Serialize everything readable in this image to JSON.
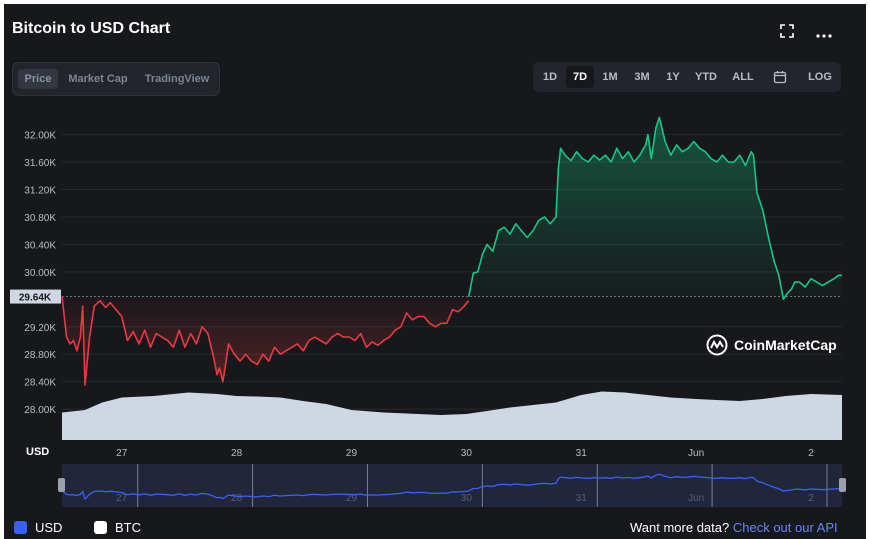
{
  "header": {
    "title": "Bitcoin to USD Chart",
    "expand_icon": "expand-icon",
    "more_icon": "more-icon"
  },
  "view_tabs": [
    {
      "label": "Price",
      "active": true
    },
    {
      "label": "Market Cap",
      "active": false
    },
    {
      "label": "TradingView",
      "active": false
    }
  ],
  "ranges": [
    {
      "label": "1D",
      "active": false
    },
    {
      "label": "7D",
      "active": true
    },
    {
      "label": "1M",
      "active": false
    },
    {
      "label": "3M",
      "active": false
    },
    {
      "label": "1Y",
      "active": false
    },
    {
      "label": "YTD",
      "active": false
    },
    {
      "label": "ALL",
      "active": false
    }
  ],
  "calendar_icon": "calendar-icon",
  "log_label": "LOG",
  "watermark": "CoinMarketCap",
  "currency_axis_label": "USD",
  "footer": {
    "usd_label": "USD",
    "btc_label": "BTC",
    "more_text": "Want more data?",
    "api_link": "Check out our API"
  },
  "colors": {
    "background": "#17181b",
    "up": "#16c784",
    "down": "#ea3943",
    "volume": "#cfd6e4",
    "navigator_line": "#3861fb",
    "link": "#6188ff"
  },
  "chart_data": {
    "type": "line",
    "title": "Bitcoin to USD Chart",
    "y_unit": "USD",
    "ylim": [
      27550,
      32300
    ],
    "y_ticks": [
      "28.00K",
      "28.40K",
      "28.80K",
      "29.20K",
      "29.64K",
      "30.00K",
      "30.40K",
      "30.80K",
      "31.20K",
      "31.60K",
      "32.00K"
    ],
    "y_tick_values": [
      28000,
      28400,
      28800,
      29200,
      29640,
      30000,
      30400,
      30800,
      31200,
      31600,
      32000
    ],
    "x_ticks": [
      "27",
      "28",
      "29",
      "30",
      "31",
      "Jun",
      "2"
    ],
    "x_tick_values": [
      26.72,
      27.72,
      28.72,
      29.72,
      30.72,
      31.72,
      32.72
    ],
    "baseline_price": 29640,
    "baseline_label": "29.64K",
    "xlim": [
      26.2,
      32.99
    ],
    "series": [
      {
        "x": [
          26.2,
          26.24,
          26.27,
          26.3,
          26.33,
          26.36,
          26.38,
          26.4,
          26.44,
          26.48,
          26.53,
          26.58,
          26.62,
          26.67,
          26.72,
          26.77,
          26.82,
          26.87,
          26.92,
          26.97,
          27.02,
          27.07,
          27.12,
          27.17,
          27.22,
          27.27,
          27.32,
          27.37,
          27.42,
          27.47,
          27.52,
          27.55,
          27.57,
          27.6,
          27.62,
          27.65,
          27.7,
          27.75,
          27.8,
          27.85,
          27.9,
          27.95,
          28.0,
          28.05,
          28.1,
          28.15,
          28.2,
          28.25,
          28.3,
          28.35,
          28.4,
          28.45,
          28.5,
          28.55,
          28.6,
          28.65,
          28.7,
          28.75,
          28.8,
          28.85,
          28.9,
          28.95,
          29.0,
          29.05,
          29.1,
          29.15,
          29.2,
          29.25,
          29.3,
          29.35,
          29.4,
          29.45,
          29.5,
          29.55,
          29.6,
          29.65,
          29.7,
          29.74
        ],
        "y": [
          29640,
          29050,
          28950,
          29000,
          28850,
          29050,
          29500,
          28350,
          29050,
          29500,
          29580,
          29480,
          29550,
          29450,
          29350,
          29000,
          29130,
          28950,
          29150,
          28900,
          29100,
          29050,
          29000,
          28900,
          29150,
          28900,
          29100,
          28950,
          29200,
          29100,
          28750,
          28500,
          28600,
          28400,
          28600,
          28950,
          28800,
          28700,
          28800,
          28700,
          28650,
          28800,
          28700,
          28900,
          28800,
          28850,
          28900,
          28950,
          28850,
          29000,
          29050,
          29000,
          28950,
          29050,
          29100,
          29050,
          29050,
          29000,
          29100,
          28900,
          28980,
          28930,
          29000,
          29050,
          29150,
          29200,
          29400,
          29300,
          29350,
          29350,
          29250,
          29200,
          29250,
          29250,
          29450,
          29420,
          29500,
          29580
        ]
      },
      {
        "x": [
          29.74,
          29.78,
          29.82,
          29.86,
          29.9,
          29.95,
          30.0,
          30.05,
          30.1,
          30.15,
          30.2,
          30.25,
          30.3,
          30.35,
          30.4,
          30.45,
          30.5,
          30.52,
          30.54,
          30.58,
          30.63,
          30.68,
          30.73,
          30.78,
          30.83,
          30.88,
          30.93,
          30.98,
          31.03,
          31.08,
          31.13,
          31.18,
          31.23,
          31.28,
          31.3,
          31.33,
          31.37,
          31.4,
          31.45,
          31.5,
          31.55,
          31.6,
          31.65,
          31.7,
          31.75,
          31.8,
          31.85,
          31.9,
          31.95,
          32.0,
          32.05,
          32.1,
          32.15,
          32.2,
          32.22,
          32.25,
          32.3,
          32.35,
          32.4,
          32.44,
          32.48,
          32.52,
          32.55,
          32.58,
          32.62,
          32.67,
          32.72,
          32.77,
          32.82,
          32.87,
          32.92,
          32.96,
          32.99
        ],
        "y": [
          29640,
          29980,
          30000,
          30250,
          30400,
          30300,
          30600,
          30650,
          30550,
          30700,
          30600,
          30500,
          30600,
          30750,
          30800,
          30700,
          30800,
          31500,
          31800,
          31700,
          31620,
          31750,
          31650,
          31600,
          31700,
          31630,
          31700,
          31600,
          31800,
          31650,
          31750,
          31600,
          31700,
          31850,
          32000,
          31650,
          32100,
          32250,
          31900,
          31700,
          31850,
          31750,
          31800,
          31900,
          31800,
          31750,
          31650,
          31600,
          31700,
          31600,
          31600,
          31700,
          31550,
          31750,
          31700,
          31150,
          30900,
          30500,
          30150,
          29950,
          29600,
          29700,
          29750,
          29850,
          29850,
          29780,
          29900,
          29850,
          29800,
          29850,
          29900,
          29950,
          29950
        ]
      }
    ],
    "volume": {
      "x": [
        26.2,
        26.4,
        26.55,
        26.72,
        27.0,
        27.3,
        27.55,
        27.72,
        27.9,
        28.1,
        28.3,
        28.5,
        28.72,
        29.0,
        29.3,
        29.5,
        29.72,
        29.9,
        30.1,
        30.3,
        30.5,
        30.72,
        30.9,
        31.1,
        31.3,
        31.5,
        31.72,
        31.9,
        32.1,
        32.3,
        32.5,
        32.72,
        32.99
      ],
      "relative": [
        0.55,
        0.6,
        0.75,
        0.85,
        0.88,
        0.95,
        0.92,
        0.88,
        0.87,
        0.85,
        0.78,
        0.72,
        0.6,
        0.55,
        0.52,
        0.5,
        0.52,
        0.58,
        0.65,
        0.7,
        0.75,
        0.9,
        0.97,
        0.95,
        0.9,
        0.85,
        0.82,
        0.8,
        0.78,
        0.82,
        0.88,
        0.92,
        0.9
      ]
    },
    "navigator": {
      "x_ticks": [
        "27",
        "28",
        "29",
        "30",
        "31",
        "Jun",
        "2"
      ]
    }
  }
}
